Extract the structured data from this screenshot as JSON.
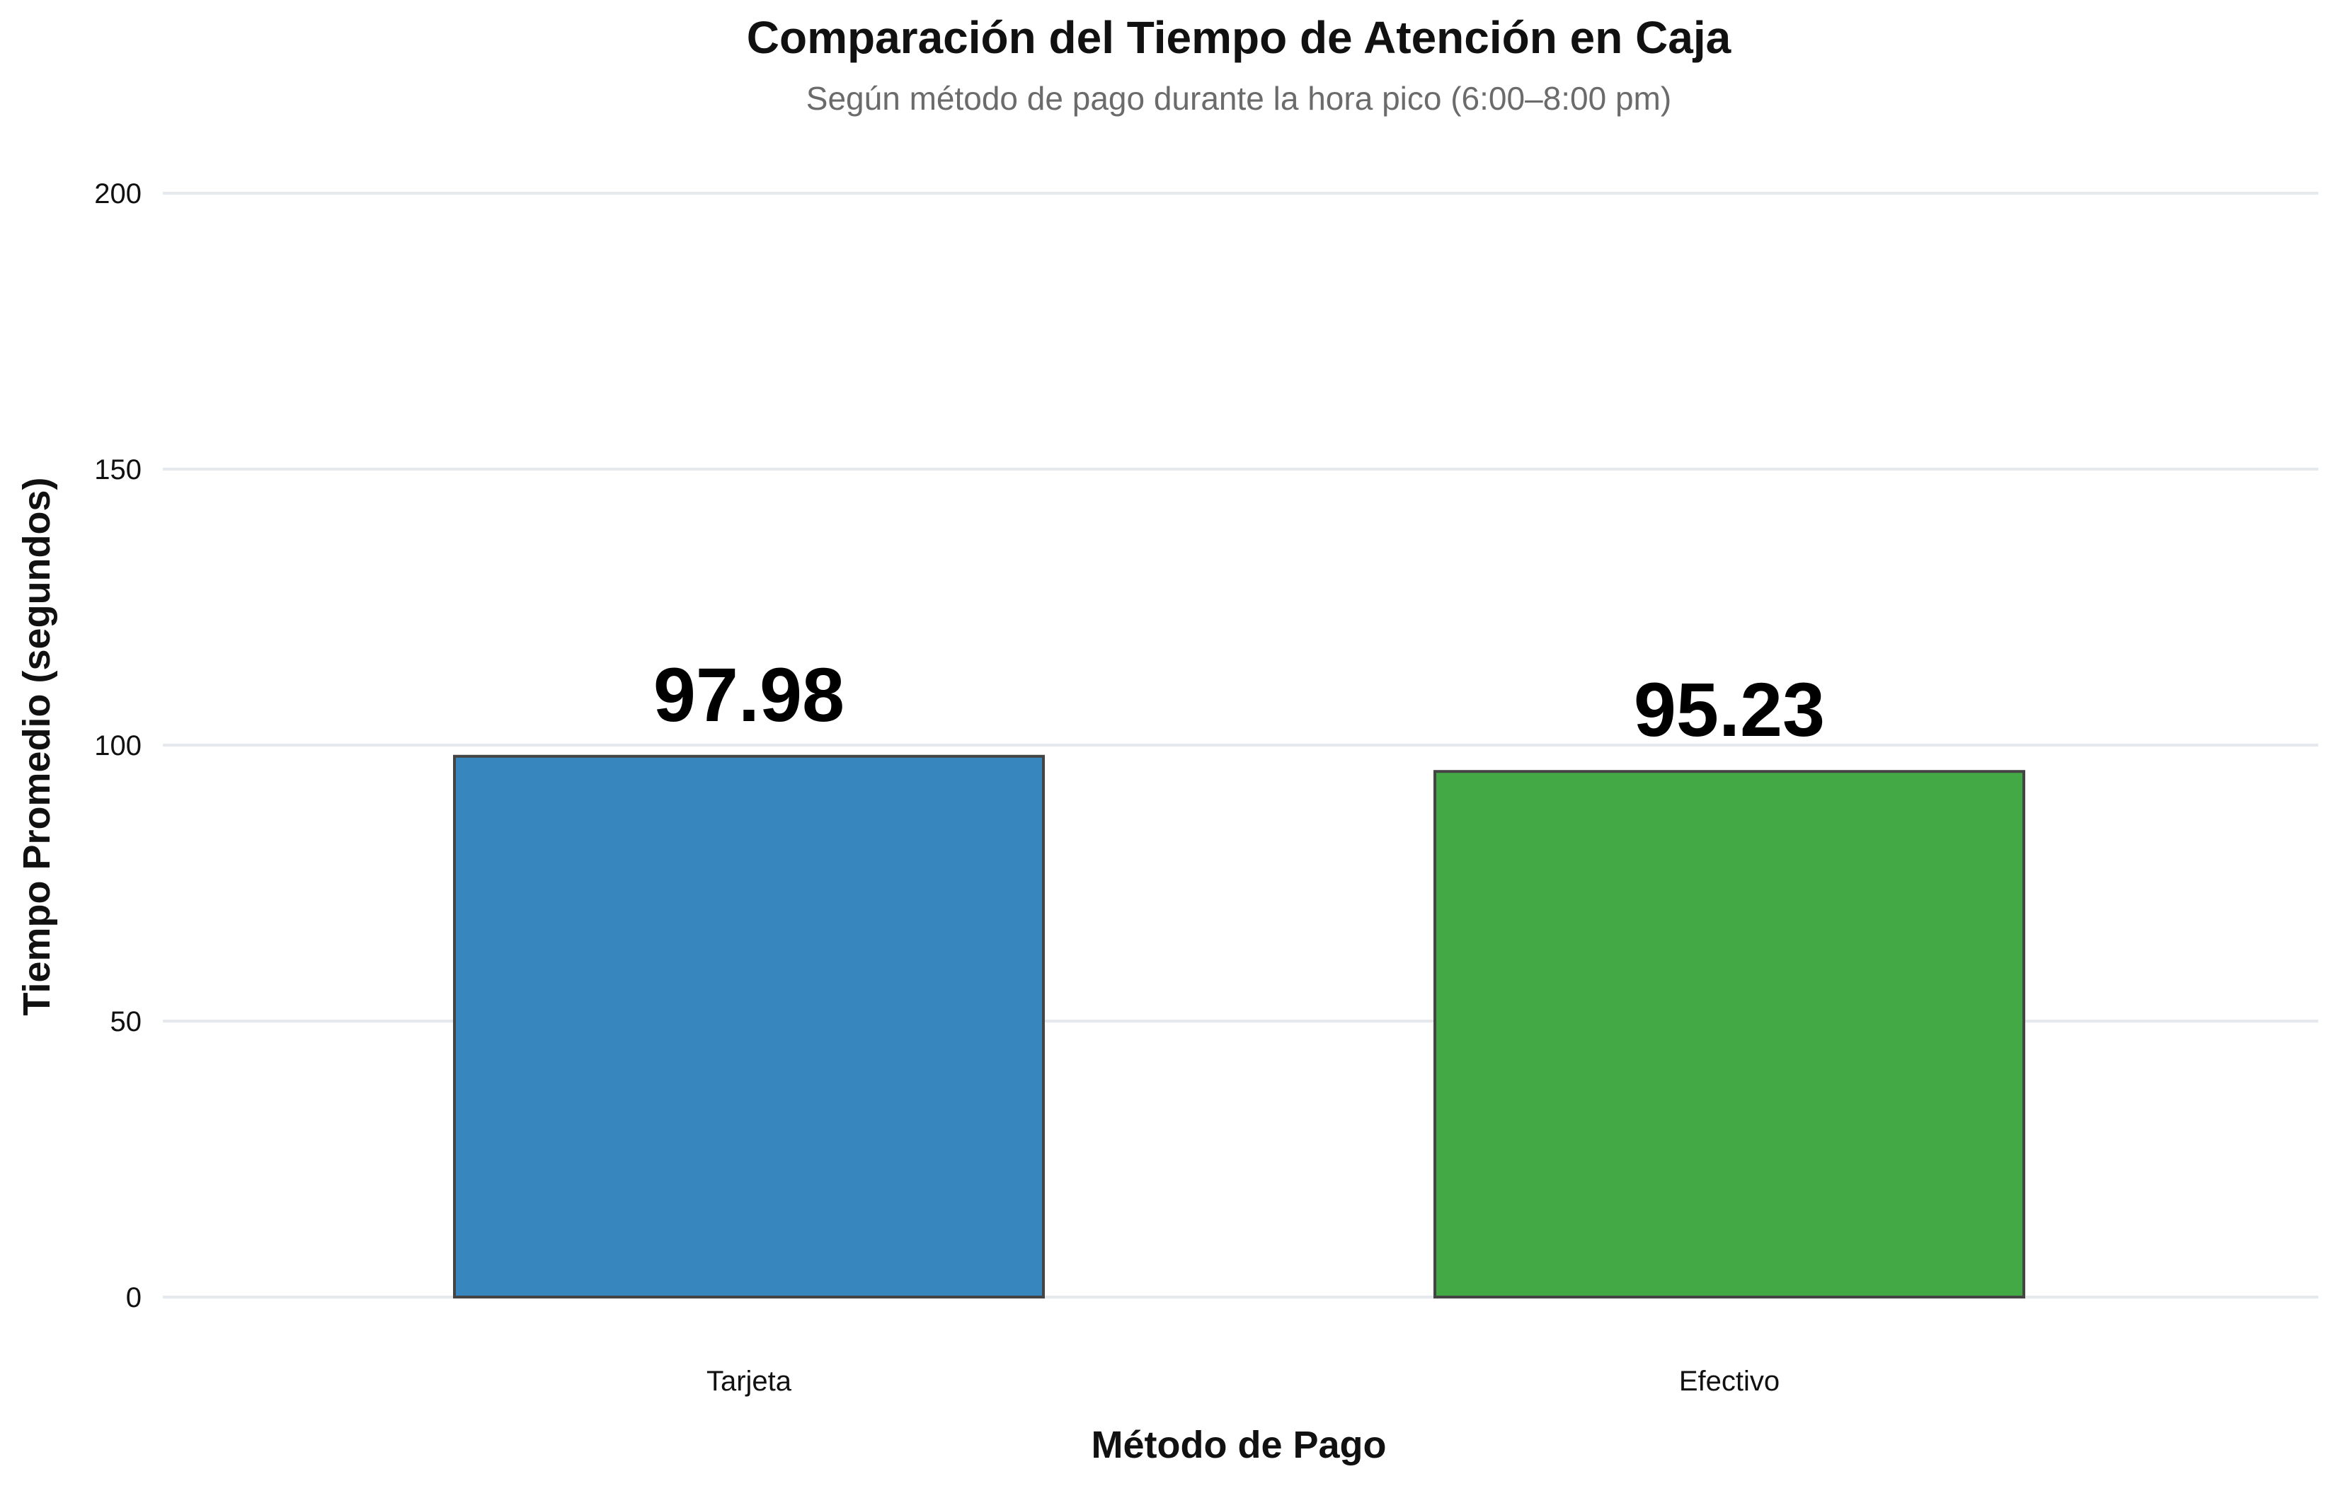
{
  "chart_data": {
    "type": "bar",
    "title": "Comparación del Tiempo de Atención en Caja",
    "subtitle": "Según método de pago durante la hora pico (6:00–8:00 pm)",
    "xlabel": "Método de Pago",
    "ylabel": "Tiempo Promedio (segundos)",
    "categories": [
      "Tarjeta",
      "Efectivo"
    ],
    "values": [
      97.98,
      95.23
    ],
    "value_labels": [
      "97.98",
      "95.23"
    ],
    "colors": [
      "#3786bd",
      "#43a945"
    ],
    "ylim": [
      0,
      200
    ],
    "yticks": [
      0,
      50,
      100,
      150,
      200
    ],
    "ytick_labels": [
      "0",
      "50",
      "100",
      "150",
      "200"
    ],
    "grid": true,
    "legend": "none"
  }
}
